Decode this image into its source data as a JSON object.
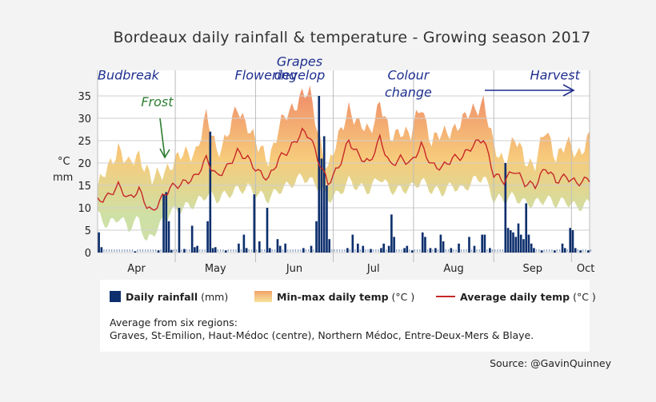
{
  "chart_data": {
    "type": "bar+area+line",
    "title": "Bordeaux daily rainfall & temperature - Growing season 2017",
    "y_axis_label_top": "°C",
    "y_axis_label_bottom": "mm",
    "ylim": [
      0,
      37
    ],
    "y_ticks": [
      0,
      5,
      10,
      15,
      20,
      25,
      30,
      35
    ],
    "x_start_day": "2017-04-01",
    "x_end_day": "2017-10-08",
    "months": [
      {
        "label": "Apr",
        "start": "2017-04-01"
      },
      {
        "label": "May",
        "start": "2017-05-01"
      },
      {
        "label": "Jun",
        "start": "2017-06-01"
      },
      {
        "label": "Jul",
        "start": "2017-07-01"
      },
      {
        "label": "Aug",
        "start": "2017-08-01"
      },
      {
        "label": "Sep",
        "start": "2017-09-01"
      },
      {
        "label": "Oct",
        "start": "2017-10-01"
      }
    ],
    "rainfall_series_name": "Daily rainfall",
    "rainfall_mm": [
      {
        "date": "2017-04-01",
        "mm": 4.5
      },
      {
        "date": "2017-04-02",
        "mm": 1.2
      },
      {
        "date": "2017-04-15",
        "mm": 0.3
      },
      {
        "date": "2017-04-24",
        "mm": 0.5
      },
      {
        "date": "2017-04-26",
        "mm": 13.0
      },
      {
        "date": "2017-04-27",
        "mm": 13.5
      },
      {
        "date": "2017-04-28",
        "mm": 7.0
      },
      {
        "date": "2017-04-29",
        "mm": 0.6
      },
      {
        "date": "2017-05-02",
        "mm": 10.0
      },
      {
        "date": "2017-05-04",
        "mm": 0.8
      },
      {
        "date": "2017-05-07",
        "mm": 6.0
      },
      {
        "date": "2017-05-08",
        "mm": 1.2
      },
      {
        "date": "2017-05-09",
        "mm": 1.5
      },
      {
        "date": "2017-05-13",
        "mm": 7.0
      },
      {
        "date": "2017-05-14",
        "mm": 27.0
      },
      {
        "date": "2017-05-15",
        "mm": 1.0
      },
      {
        "date": "2017-05-16",
        "mm": 1.2
      },
      {
        "date": "2017-05-20",
        "mm": 0.5
      },
      {
        "date": "2017-05-25",
        "mm": 2.0
      },
      {
        "date": "2017-05-27",
        "mm": 4.0
      },
      {
        "date": "2017-05-28",
        "mm": 1.0
      },
      {
        "date": "2017-05-31",
        "mm": 13.0
      },
      {
        "date": "2017-06-02",
        "mm": 2.5
      },
      {
        "date": "2017-06-05",
        "mm": 10.0
      },
      {
        "date": "2017-06-06",
        "mm": 1.0
      },
      {
        "date": "2017-06-09",
        "mm": 3.0
      },
      {
        "date": "2017-06-10",
        "mm": 1.5
      },
      {
        "date": "2017-06-12",
        "mm": 2.0
      },
      {
        "date": "2017-06-19",
        "mm": 1.0
      },
      {
        "date": "2017-06-22",
        "mm": 1.5
      },
      {
        "date": "2017-06-24",
        "mm": 7.0
      },
      {
        "date": "2017-06-25",
        "mm": 35.0
      },
      {
        "date": "2017-06-26",
        "mm": 21.0
      },
      {
        "date": "2017-06-27",
        "mm": 26.0
      },
      {
        "date": "2017-06-28",
        "mm": 15.0
      },
      {
        "date": "2017-06-29",
        "mm": 3.0
      },
      {
        "date": "2017-07-06",
        "mm": 1.0
      },
      {
        "date": "2017-07-08",
        "mm": 4.0
      },
      {
        "date": "2017-07-10",
        "mm": 2.0
      },
      {
        "date": "2017-07-12",
        "mm": 1.5
      },
      {
        "date": "2017-07-15",
        "mm": 0.8
      },
      {
        "date": "2017-07-19",
        "mm": 1.0
      },
      {
        "date": "2017-07-20",
        "mm": 2.0
      },
      {
        "date": "2017-07-22",
        "mm": 1.5
      },
      {
        "date": "2017-07-23",
        "mm": 8.5
      },
      {
        "date": "2017-07-24",
        "mm": 3.5
      },
      {
        "date": "2017-07-28",
        "mm": 1.0
      },
      {
        "date": "2017-07-29",
        "mm": 1.5
      },
      {
        "date": "2017-07-31",
        "mm": 0.5
      },
      {
        "date": "2017-08-04",
        "mm": 4.5
      },
      {
        "date": "2017-08-05",
        "mm": 3.5
      },
      {
        "date": "2017-08-07",
        "mm": 1.0
      },
      {
        "date": "2017-08-09",
        "mm": 1.0
      },
      {
        "date": "2017-08-11",
        "mm": 4.0
      },
      {
        "date": "2017-08-12",
        "mm": 2.5
      },
      {
        "date": "2017-08-15",
        "mm": 1.0
      },
      {
        "date": "2017-08-18",
        "mm": 2.0
      },
      {
        "date": "2017-08-22",
        "mm": 3.5
      },
      {
        "date": "2017-08-24",
        "mm": 1.5
      },
      {
        "date": "2017-08-27",
        "mm": 4.0
      },
      {
        "date": "2017-08-28",
        "mm": 4.0
      },
      {
        "date": "2017-08-30",
        "mm": 1.0
      },
      {
        "date": "2017-09-05",
        "mm": 20.0
      },
      {
        "date": "2017-09-06",
        "mm": 5.5
      },
      {
        "date": "2017-09-07",
        "mm": 5.0
      },
      {
        "date": "2017-09-08",
        "mm": 4.5
      },
      {
        "date": "2017-09-09",
        "mm": 3.5
      },
      {
        "date": "2017-09-10",
        "mm": 6.5
      },
      {
        "date": "2017-09-11",
        "mm": 4.0
      },
      {
        "date": "2017-09-12",
        "mm": 3.0
      },
      {
        "date": "2017-09-13",
        "mm": 11.0
      },
      {
        "date": "2017-09-14",
        "mm": 4.0
      },
      {
        "date": "2017-09-15",
        "mm": 2.0
      },
      {
        "date": "2017-09-16",
        "mm": 1.0
      },
      {
        "date": "2017-09-19",
        "mm": 0.5
      },
      {
        "date": "2017-09-24",
        "mm": 0.5
      },
      {
        "date": "2017-09-27",
        "mm": 2.0
      },
      {
        "date": "2017-09-28",
        "mm": 1.0
      },
      {
        "date": "2017-09-30",
        "mm": 5.5
      },
      {
        "date": "2017-10-01",
        "mm": 5.0
      },
      {
        "date": "2017-10-02",
        "mm": 1.0
      },
      {
        "date": "2017-10-04",
        "mm": 0.5
      },
      {
        "date": "2017-10-07",
        "mm": 0.5
      }
    ],
    "temperature_anchor_points": [
      {
        "date": "2017-04-01",
        "min": 8.5,
        "max": 14.5,
        "avg": 11.5
      },
      {
        "date": "2017-04-05",
        "min": 6.0,
        "max": 18.5,
        "avg": 12.5
      },
      {
        "date": "2017-04-09",
        "min": 8.0,
        "max": 24.0,
        "avg": 15.0
      },
      {
        "date": "2017-04-13",
        "min": 5.5,
        "max": 19.0,
        "avg": 12.0
      },
      {
        "date": "2017-04-17",
        "min": 7.5,
        "max": 22.0,
        "avg": 14.0
      },
      {
        "date": "2017-04-20",
        "min": 2.0,
        "max": 19.0,
        "avg": 10.5
      },
      {
        "date": "2017-04-22",
        "min": 4.0,
        "max": 16.0,
        "avg": 9.0
      },
      {
        "date": "2017-04-25",
        "min": 6.0,
        "max": 17.0,
        "avg": 11.5
      },
      {
        "date": "2017-04-29",
        "min": 9.0,
        "max": 20.0,
        "avg": 14.5
      },
      {
        "date": "2017-05-04",
        "min": 10.0,
        "max": 21.5,
        "avg": 15.5
      },
      {
        "date": "2017-05-09",
        "min": 11.0,
        "max": 23.0,
        "avg": 17.0
      },
      {
        "date": "2017-05-13",
        "min": 13.0,
        "max": 30.0,
        "avg": 21.0
      },
      {
        "date": "2017-05-17",
        "min": 12.0,
        "max": 23.0,
        "avg": 17.0
      },
      {
        "date": "2017-05-21",
        "min": 13.0,
        "max": 26.0,
        "avg": 19.0
      },
      {
        "date": "2017-05-25",
        "min": 14.0,
        "max": 32.0,
        "avg": 22.5
      },
      {
        "date": "2017-05-29",
        "min": 14.5,
        "max": 29.0,
        "avg": 21.0
      },
      {
        "date": "2017-06-02",
        "min": 13.0,
        "max": 23.0,
        "avg": 18.0
      },
      {
        "date": "2017-06-06",
        "min": 12.0,
        "max": 21.0,
        "avg": 16.5
      },
      {
        "date": "2017-06-10",
        "min": 14.0,
        "max": 28.0,
        "avg": 21.0
      },
      {
        "date": "2017-06-14",
        "min": 15.0,
        "max": 31.0,
        "avg": 23.0
      },
      {
        "date": "2017-06-19",
        "min": 17.0,
        "max": 36.0,
        "avg": 27.0
      },
      {
        "date": "2017-06-22",
        "min": 16.0,
        "max": 35.0,
        "avg": 26.0
      },
      {
        "date": "2017-06-25",
        "min": 15.0,
        "max": 27.0,
        "avg": 21.0
      },
      {
        "date": "2017-06-29",
        "min": 12.0,
        "max": 19.0,
        "avg": 15.5
      },
      {
        "date": "2017-07-03",
        "min": 13.0,
        "max": 25.0,
        "avg": 19.0
      },
      {
        "date": "2017-07-07",
        "min": 16.0,
        "max": 33.0,
        "avg": 25.0
      },
      {
        "date": "2017-07-11",
        "min": 14.5,
        "max": 28.0,
        "avg": 21.5
      },
      {
        "date": "2017-07-15",
        "min": 14.0,
        "max": 27.0,
        "avg": 20.0
      },
      {
        "date": "2017-07-19",
        "min": 17.0,
        "max": 34.0,
        "avg": 25.5
      },
      {
        "date": "2017-07-23",
        "min": 14.0,
        "max": 25.0,
        "avg": 19.5
      },
      {
        "date": "2017-07-27",
        "min": 14.0,
        "max": 28.0,
        "avg": 21.0
      },
      {
        "date": "2017-07-31",
        "min": 14.5,
        "max": 26.0,
        "avg": 20.0
      },
      {
        "date": "2017-08-04",
        "min": 16.0,
        "max": 33.0,
        "avg": 24.0
      },
      {
        "date": "2017-08-08",
        "min": 14.0,
        "max": 25.0,
        "avg": 19.5
      },
      {
        "date": "2017-08-12",
        "min": 13.5,
        "max": 26.0,
        "avg": 19.0
      },
      {
        "date": "2017-08-16",
        "min": 15.0,
        "max": 28.0,
        "avg": 21.0
      },
      {
        "date": "2017-08-20",
        "min": 14.0,
        "max": 29.0,
        "avg": 21.5
      },
      {
        "date": "2017-08-24",
        "min": 16.0,
        "max": 32.0,
        "avg": 24.0
      },
      {
        "date": "2017-08-28",
        "min": 17.0,
        "max": 34.0,
        "avg": 25.5
      },
      {
        "date": "2017-09-01",
        "min": 12.0,
        "max": 23.0,
        "avg": 17.5
      },
      {
        "date": "2017-09-05",
        "min": 12.0,
        "max": 21.0,
        "avg": 16.0
      },
      {
        "date": "2017-09-09",
        "min": 12.5,
        "max": 25.0,
        "avg": 18.5
      },
      {
        "date": "2017-09-13",
        "min": 11.0,
        "max": 21.0,
        "avg": 15.5
      },
      {
        "date": "2017-09-17",
        "min": 11.0,
        "max": 20.0,
        "avg": 15.0
      },
      {
        "date": "2017-09-21",
        "min": 12.0,
        "max": 27.0,
        "avg": 19.0
      },
      {
        "date": "2017-09-25",
        "min": 11.0,
        "max": 22.0,
        "avg": 16.0
      },
      {
        "date": "2017-09-29",
        "min": 11.5,
        "max": 24.0,
        "avg": 17.0
      },
      {
        "date": "2017-10-03",
        "min": 10.0,
        "max": 22.0,
        "avg": 15.5
      },
      {
        "date": "2017-10-08",
        "min": 11.0,
        "max": 26.0,
        "avg": 16.5
      }
    ],
    "annotations": [
      {
        "label": "Budbreak",
        "date": "2017-04-01",
        "y": 38.7,
        "color": "#1f2f8f"
      },
      {
        "label": "Frost",
        "date": "2017-04-24",
        "y": 32.7,
        "color": "#2e7d32"
      },
      {
        "label": "Flowering",
        "date": "2017-05-24",
        "y": 38.7,
        "color": "#1f2f8f"
      },
      {
        "label": "Grapes",
        "date": "2017-06-18",
        "y": 41.7,
        "color": "#1f2f8f"
      },
      {
        "label": "develop",
        "date": "2017-06-18",
        "y": 38.7,
        "color": "#1f2f8f"
      },
      {
        "label": "Colour",
        "date": "2017-07-30",
        "y": 38.7,
        "color": "#1f2f8f"
      },
      {
        "label": "change",
        "date": "2017-07-30",
        "y": 34.8,
        "color": "#1f2f8f"
      },
      {
        "label": "Harvest",
        "date": "2017-09-15",
        "y": 38.7,
        "color": "#1f2f8f"
      }
    ],
    "colors": {
      "rain": "#0d2f6d",
      "avg_line": "#c62828",
      "band_hot": "#ef8a5c",
      "band_mid": "#f6c56c",
      "band_cool": "#c8dd9c",
      "grid": "#cfcfcf",
      "plot_bg": "#ffffff"
    }
  },
  "legend": {
    "rain_label_bold": "Daily rainfall",
    "rain_label_unit": " (mm)",
    "temp_label_bold": "Min-max daily temp",
    "temp_label_unit": " (°C )",
    "avg_label_bold": "Average daily temp",
    "avg_label_unit": " (°C )",
    "note_line1": "Average from six regions:",
    "note_line2": "Graves, St-Emilion, Haut-Médoc (centre), Northern Médoc, Entre-Deux-Mers & Blaye."
  },
  "source": "Source: @GavinQuinney"
}
